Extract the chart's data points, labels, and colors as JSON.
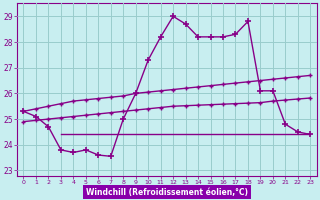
{
  "xlabel": "Windchill (Refroidissement éolien,°C)",
  "bg_color": "#c8eef0",
  "line_color": "#880088",
  "grid_color": "#99cccc",
  "xlabel_bg": "#8800aa",
  "xlabel_fg": "#ffffff",
  "ylim": [
    22.8,
    29.5
  ],
  "xlim": [
    -0.5,
    23.5
  ],
  "yticks": [
    23,
    24,
    25,
    26,
    27,
    28,
    29
  ],
  "xticks": [
    0,
    1,
    2,
    3,
    4,
    5,
    6,
    7,
    8,
    9,
    10,
    11,
    12,
    13,
    14,
    15,
    16,
    17,
    18,
    19,
    20,
    21,
    22,
    23
  ],
  "curve1_x": [
    0,
    1,
    2,
    3,
    4,
    5,
    6,
    7,
    8,
    9,
    10,
    11,
    12,
    13,
    14,
    15,
    16,
    17,
    18,
    19,
    20,
    21,
    22,
    23
  ],
  "curve1_y": [
    25.3,
    25.1,
    24.7,
    23.8,
    23.7,
    23.8,
    23.6,
    23.55,
    25.0,
    26.0,
    27.3,
    28.2,
    29.0,
    28.7,
    28.2,
    28.2,
    28.2,
    28.3,
    28.8,
    26.1,
    26.1,
    24.8,
    24.5,
    24.4
  ],
  "curve2_x": [
    0,
    1,
    2,
    3,
    4,
    5,
    6,
    7,
    8,
    9,
    10,
    11,
    12,
    13,
    14,
    15,
    16,
    17,
    18,
    19,
    20,
    21,
    22,
    23
  ],
  "curve2_y": [
    25.3,
    25.4,
    25.5,
    25.6,
    25.7,
    25.75,
    25.8,
    25.85,
    25.9,
    26.0,
    26.05,
    26.1,
    26.15,
    26.2,
    26.25,
    26.3,
    26.35,
    26.4,
    26.45,
    26.5,
    26.55,
    26.6,
    26.65,
    26.7
  ],
  "curve3_x": [
    0,
    1,
    2,
    3,
    4,
    5,
    6,
    7,
    8,
    9,
    10,
    11,
    12,
    13,
    14,
    15,
    16,
    17,
    18,
    19,
    20,
    21,
    22,
    23
  ],
  "curve3_y": [
    24.9,
    24.95,
    25.0,
    25.05,
    25.1,
    25.15,
    25.2,
    25.25,
    25.3,
    25.35,
    25.4,
    25.45,
    25.5,
    25.52,
    25.54,
    25.56,
    25.58,
    25.6,
    25.62,
    25.64,
    25.7,
    25.74,
    25.78,
    25.82
  ],
  "curve4_x": [
    3,
    23
  ],
  "curve4_y": [
    24.4,
    24.4
  ]
}
